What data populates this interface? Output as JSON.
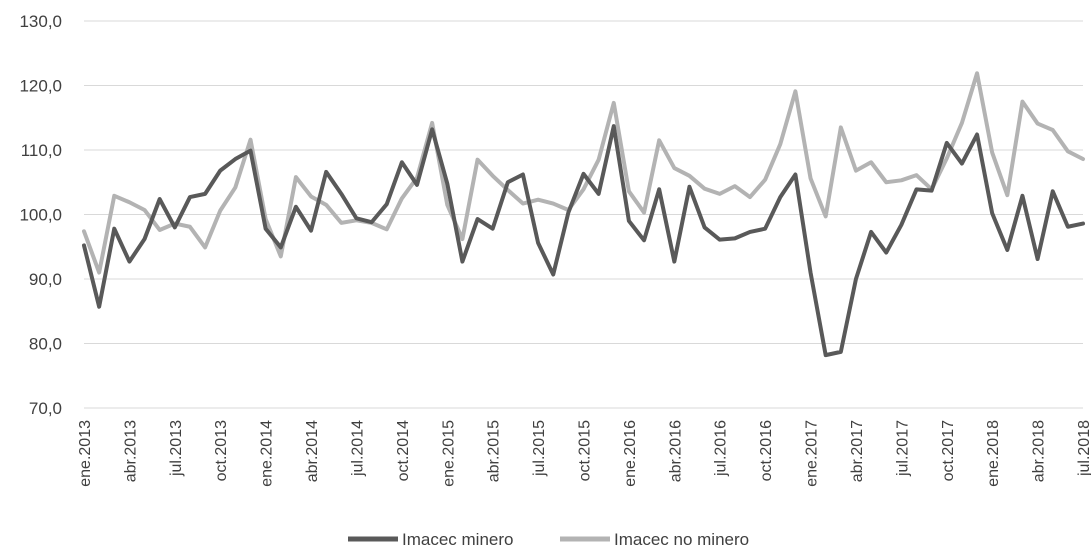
{
  "chart_data": {
    "type": "line",
    "title": "",
    "xlabel": "",
    "ylabel": "",
    "ylim": [
      70,
      130
    ],
    "yticks": [
      "70,0",
      "80,0",
      "90,0",
      "100,0",
      "110,0",
      "120,0",
      "130,0"
    ],
    "grid": true,
    "legend_position": "bottom",
    "x": [
      "ene.2013",
      "feb.2013",
      "mar.2013",
      "abr.2013",
      "may.2013",
      "jun.2013",
      "jul.2013",
      "ago.2013",
      "sep.2013",
      "oct.2013",
      "nov.2013",
      "dic.2013",
      "ene.2014",
      "feb.2014",
      "mar.2014",
      "abr.2014",
      "may.2014",
      "jun.2014",
      "jul.2014",
      "ago.2014",
      "sep.2014",
      "oct.2014",
      "nov.2014",
      "dic.2014",
      "ene.2015",
      "feb.2015",
      "mar.2015",
      "abr.2015",
      "may.2015",
      "jun.2015",
      "jul.2015",
      "ago.2015",
      "sep.2015",
      "oct.2015",
      "nov.2015",
      "dic.2015",
      "ene.2016",
      "feb.2016",
      "mar.2016",
      "abr.2016",
      "may.2016",
      "jun.2016",
      "jul.2016",
      "ago.2016",
      "sep.2016",
      "oct.2016",
      "nov.2016",
      "dic.2016",
      "ene.2017",
      "feb.2017",
      "mar.2017",
      "abr.2017",
      "may.2017",
      "jun.2017",
      "jul.2017",
      "ago.2017",
      "sep.2017",
      "oct.2017",
      "nov.2017",
      "dic.2017",
      "ene.2018",
      "feb.2018",
      "mar.2018",
      "abr.2018",
      "may.2018",
      "jun.2018",
      "jul.2018"
    ],
    "xtick_labels": [
      "ene.2013",
      "abr.2013",
      "jul.2013",
      "oct.2013",
      "ene.2014",
      "abr.2014",
      "jul.2014",
      "oct.2014",
      "ene.2015",
      "abr.2015",
      "jul.2015",
      "oct.2015",
      "ene.2016",
      "abr.2016",
      "jul.2016",
      "oct.2016",
      "ene.2017",
      "abr.2017",
      "jul.2017",
      "oct.2017",
      "ene.2018",
      "abr.2018",
      "jul.2018"
    ],
    "series": [
      {
        "name": "Imacec minero",
        "color": "#595959",
        "values": [
          95.2,
          85.7,
          97.8,
          92.7,
          96.2,
          102.4,
          98.0,
          102.7,
          103.2,
          106.8,
          108.6,
          109.9,
          97.8,
          94.9,
          101.2,
          97.5,
          106.6,
          103.2,
          99.4,
          98.8,
          101.6,
          108.1,
          104.6,
          113.2,
          104.8,
          92.7,
          99.3,
          97.8,
          105.0,
          106.2,
          95.6,
          90.7,
          100.3,
          106.3,
          103.2,
          113.7,
          99.0,
          96.0,
          103.9,
          92.7,
          104.3,
          98.0,
          96.1,
          96.3,
          97.3,
          97.8,
          102.7,
          106.2,
          91.0,
          78.2,
          78.7,
          90.0,
          97.3,
          94.1,
          98.4,
          103.9,
          103.7,
          111.1,
          107.9,
          112.4,
          100.2,
          94.5,
          102.9,
          93.1,
          103.6,
          98.1,
          98.6
        ]
      },
      {
        "name": "Imacec no minero",
        "color": "#b3b3b3",
        "values": [
          97.4,
          91.0,
          102.9,
          101.9,
          100.7,
          97.6,
          98.6,
          98.1,
          94.9,
          100.6,
          104.2,
          111.6,
          99.3,
          93.5,
          105.8,
          102.8,
          101.5,
          98.7,
          99.1,
          98.7,
          97.7,
          102.5,
          105.7,
          114.2,
          101.5,
          96.2,
          108.5,
          106.0,
          103.8,
          101.7,
          102.3,
          101.7,
          100.7,
          103.9,
          108.5,
          117.3,
          103.6,
          100.3,
          111.5,
          107.2,
          106.0,
          104.0,
          103.2,
          104.4,
          102.7,
          105.4,
          110.9,
          119.1,
          105.6,
          99.7,
          113.5,
          106.8,
          108.1,
          105.0,
          105.3,
          106.1,
          103.9,
          108.7,
          114.2,
          121.9,
          109.6,
          103.0,
          117.5,
          114.1,
          113.1,
          109.8,
          108.6
        ]
      }
    ]
  }
}
